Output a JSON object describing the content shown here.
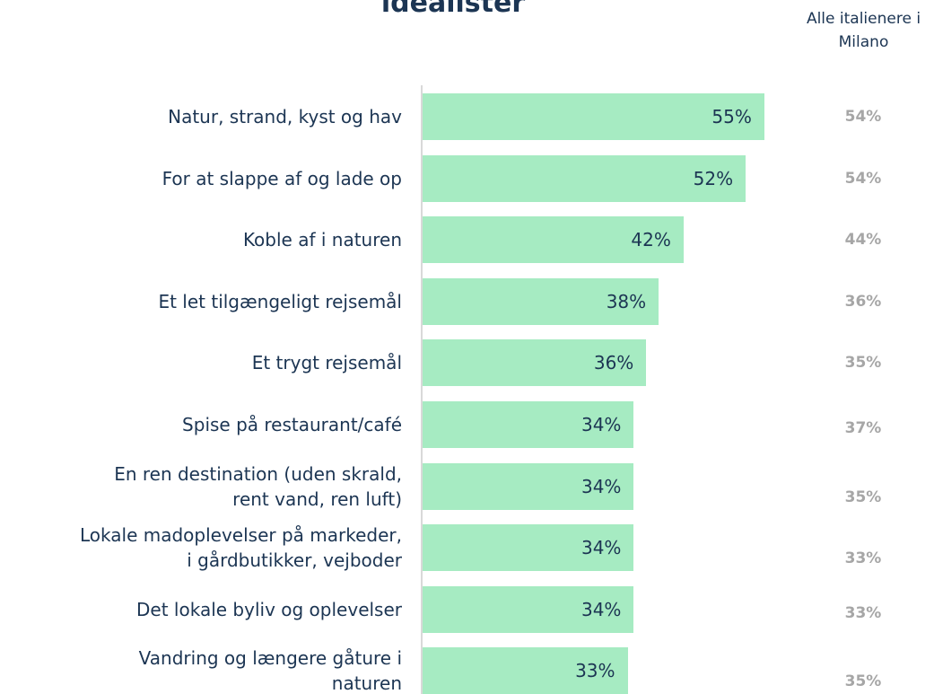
{
  "chart_data": {
    "type": "bar",
    "orientation": "horizontal",
    "title": "idealister",
    "categories": [
      "Natur, strand, kyst og hav",
      "For at slappe af og lade op",
      "Koble af i naturen",
      "Et let tilgængeligt rejsemål",
      "Et trygt rejsemål",
      "Spise på restaurant/café",
      "En ren destination (uden skrald,\nrent vand, ren luft)",
      "Lokale madoplevelser på markeder,\ni gårdbutikker, vejboder",
      "Det lokale byliv og oplevelser",
      "Vandring og længere gåture i\nnaturen"
    ],
    "xlim": [
      0,
      80
    ],
    "series": [
      {
        "color": "#a6ebc2",
        "values": [
          55,
          52,
          42,
          38,
          36,
          34,
          34,
          34,
          34,
          33
        ],
        "value_labels": [
          "55%",
          "52%",
          "42%",
          "38%",
          "36%",
          "34%",
          "34%",
          "34%",
          "34%",
          "33%"
        ]
      },
      {
        "name": "Alle italienere i Milano",
        "color": "#a6a6a6",
        "values": [
          54,
          54,
          44,
          36,
          35,
          37,
          35,
          33,
          33,
          35
        ],
        "value_labels": [
          "54%",
          "54%",
          "44%",
          "36%",
          "35%",
          "37%",
          "35%",
          "33%",
          "33%",
          "35%"
        ]
      }
    ]
  }
}
